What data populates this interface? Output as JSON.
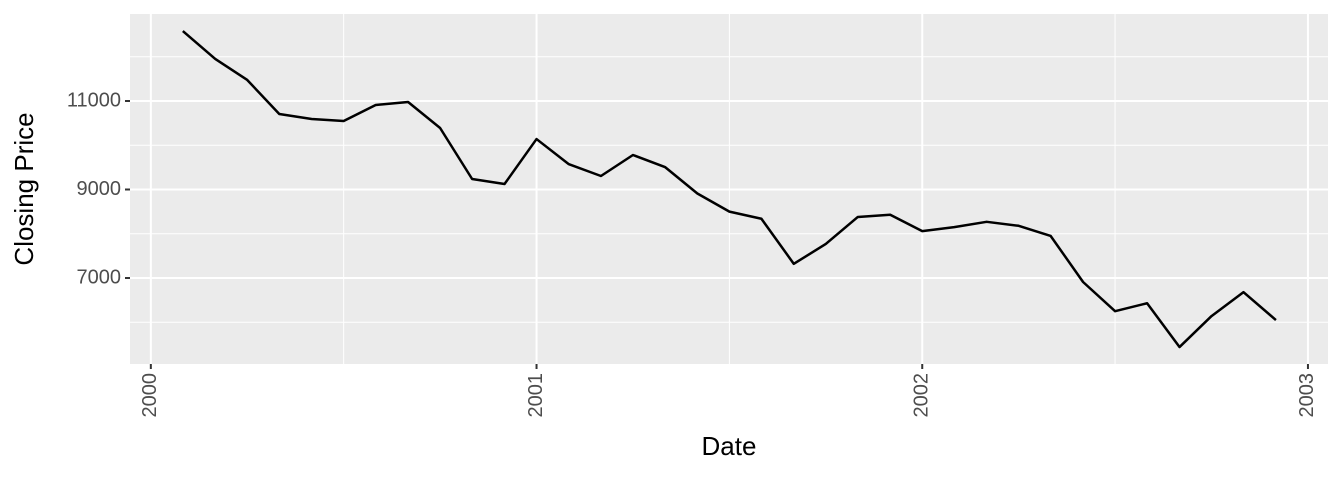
{
  "chart_data": {
    "type": "line",
    "x_label": "Date",
    "y_label": "Closing Price",
    "x": [
      2000.083,
      2000.167,
      2000.25,
      2000.333,
      2000.417,
      2000.5,
      2000.583,
      2000.667,
      2000.75,
      2000.833,
      2000.917,
      2001.0,
      2001.083,
      2001.167,
      2001.25,
      2001.333,
      2001.417,
      2001.5,
      2001.583,
      2001.667,
      2001.75,
      2001.833,
      2001.917,
      2002.0,
      2002.083,
      2002.167,
      2002.25,
      2002.333,
      2002.417,
      2002.5,
      2002.583,
      2002.667,
      2002.75,
      2002.833,
      2002.917
    ],
    "values": [
      12580,
      11950,
      11475,
      10706,
      10593,
      10548,
      10910,
      10977,
      10390,
      9237,
      9124,
      10140,
      9576,
      9305,
      9780,
      9508,
      8910,
      8500,
      8340,
      7320,
      7770,
      8380,
      8430,
      8060,
      8150,
      8270,
      8180,
      7950,
      6910,
      6250,
      6430,
      5440,
      6140,
      6680,
      6050
    ],
    "color": "#000000",
    "xlim": [
      1999.946,
      2003.052
    ],
    "xticks": [
      2000,
      2001,
      2002,
      2003
    ],
    "ylim": [
      5057,
      12966
    ],
    "yticks": [
      7000,
      9000,
      11000
    ],
    "x_minor_grid": [
      2000.5,
      2001.5,
      2002.5
    ],
    "y_minor_grid": [
      6000,
      8000,
      10000,
      12000
    ],
    "grid": true
  }
}
